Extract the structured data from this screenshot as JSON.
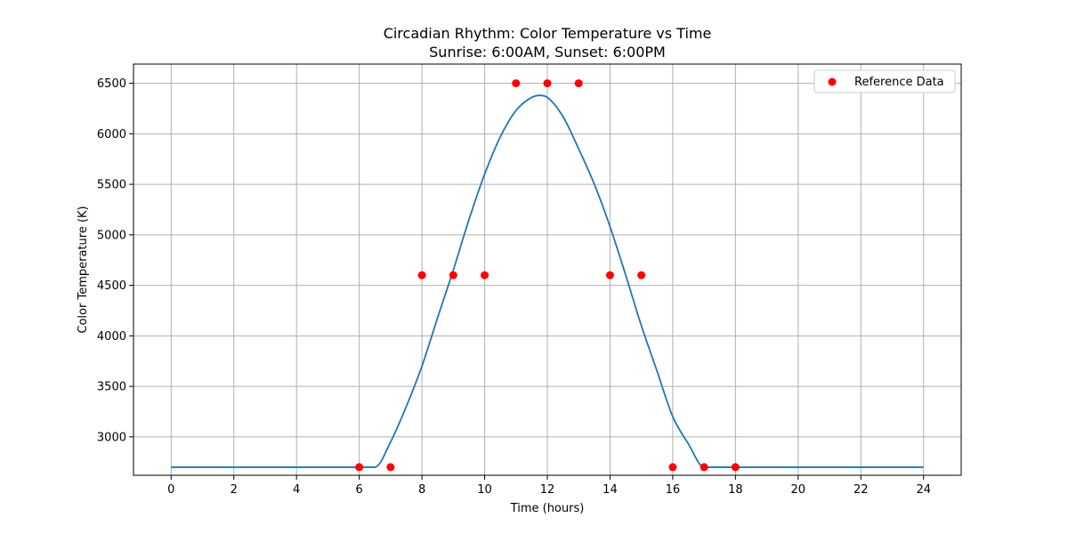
{
  "chart_data": {
    "type": "line",
    "title": "Circadian Rhythm: Color Temperature vs Time",
    "subtitle": "Sunrise: 6:00AM, Sunset: 6:00PM",
    "xlabel": "Time (hours)",
    "ylabel": "Color Temperature (K)",
    "xlim": [
      -1.2,
      25.2
    ],
    "ylim": [
      2620,
      6690
    ],
    "xticks": [
      0,
      2,
      4,
      6,
      8,
      10,
      12,
      14,
      16,
      18,
      20,
      22,
      24
    ],
    "yticks": [
      3000,
      3500,
      4000,
      4500,
      5000,
      5500,
      6000,
      6500
    ],
    "grid": true,
    "legend_position": "top-right",
    "colors": {
      "curve": "#1f77b4",
      "reference": "#ff0000",
      "grid": "#b0b0b0"
    },
    "curve": {
      "baseline": 2700,
      "x": [
        0,
        6.5,
        7,
        7.5,
        8,
        8.5,
        9,
        9.5,
        10,
        10.5,
        11,
        11.5,
        11.75,
        12,
        12.5,
        13,
        13.5,
        14,
        14.5,
        15,
        15.5,
        16,
        16.5,
        17,
        24
      ],
      "y": [
        2700,
        2700,
        2950,
        3300,
        3700,
        4180,
        4650,
        5150,
        5600,
        5970,
        6230,
        6360,
        6380,
        6360,
        6170,
        5850,
        5500,
        5080,
        4600,
        4100,
        3650,
        3200,
        2930,
        2700,
        2700
      ]
    },
    "series": [
      {
        "name": "Reference Data",
        "type": "scatter",
        "x": [
          6,
          7,
          8,
          9,
          10,
          11,
          12,
          13,
          14,
          15,
          16,
          17,
          18
        ],
        "y": [
          2700,
          2700,
          4600,
          4600,
          4600,
          6500,
          6500,
          6500,
          4600,
          4600,
          2700,
          2700,
          2700
        ]
      }
    ]
  }
}
